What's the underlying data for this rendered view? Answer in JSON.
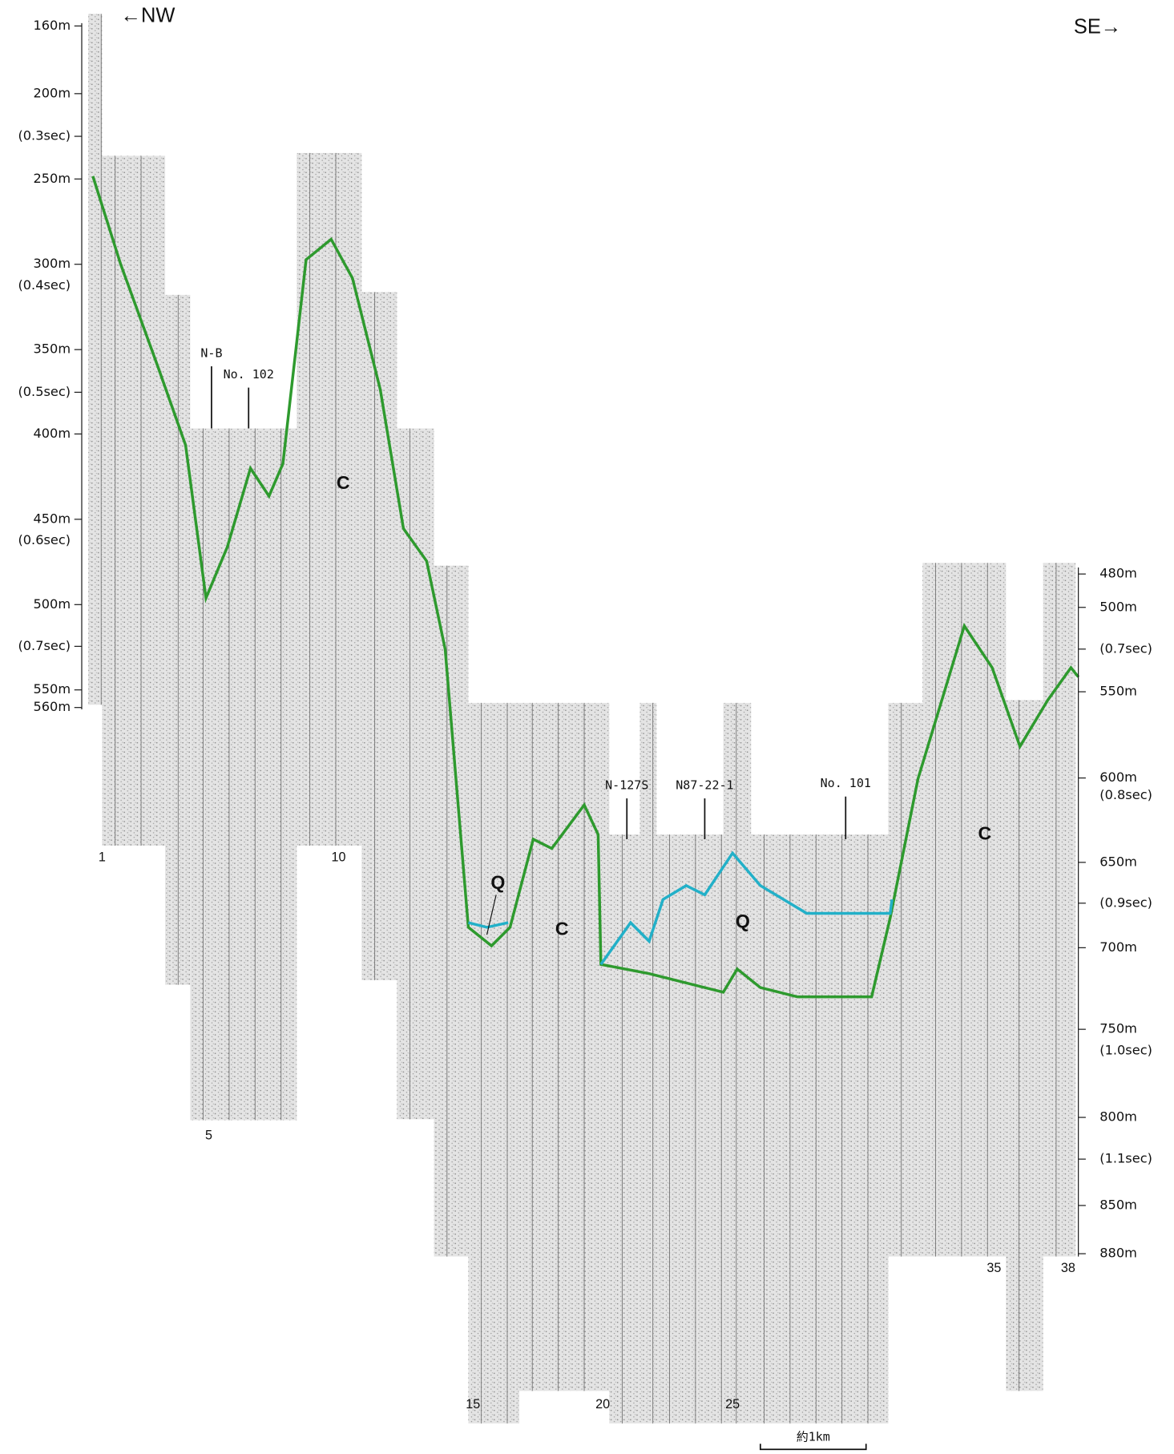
{
  "direction": {
    "left": "←NW",
    "right": "SE→"
  },
  "left_axis": [
    "160m",
    "200m",
    "(0.3sec)",
    "250m",
    "300m",
    "(0.4sec)",
    "350m",
    "(0.5sec)",
    "400m",
    "450m",
    "(0.6sec)",
    "500m",
    "(0.7sec)",
    "550m",
    "560m"
  ],
  "right_axis": [
    "480m",
    "500m",
    "(0.7sec)",
    "550m",
    "600m",
    "(0.8sec)",
    "650m",
    "(0.9sec)",
    "700m",
    "750m",
    "(1.0sec)",
    "800m",
    "(1.1sec)",
    "850m",
    "880m"
  ],
  "wells": [
    "N-B",
    "No. 102",
    "N-127S",
    "N87-22-1",
    "No. 101"
  ],
  "units": [
    "C",
    "Q",
    "C",
    "Q",
    "C"
  ],
  "shot_points": [
    "1",
    "10",
    "5",
    "15",
    "20",
    "25",
    "35",
    "38"
  ],
  "scale_bar": "約1km"
}
